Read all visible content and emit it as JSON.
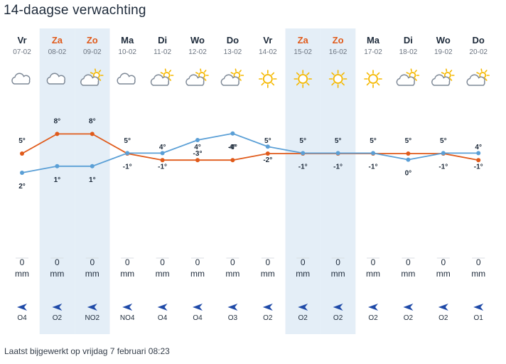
{
  "page": {
    "title": "14-daagse verwachting",
    "footer": "Laatst bijgewerkt op vrijdag 7 februari 08:23"
  },
  "colors": {
    "max_line": "#e05a1a",
    "min_line": "#5a9fd6",
    "weekend_band": "#e4eef7",
    "weekend_text": "#e05a1a",
    "sun": "#f5b800",
    "cloud_stroke": "#7d8896",
    "wind_arrow": "#1f4aa8"
  },
  "days": [
    {
      "day": "Vr",
      "date": "07-02",
      "icon": "cloud-icon",
      "max": "5°",
      "min": "2°",
      "precip": "0",
      "unit": "mm",
      "wind": "O4",
      "weekend": false
    },
    {
      "day": "Za",
      "date": "08-02",
      "icon": "cloud-icon",
      "max": "8°",
      "min": "1°",
      "precip": "0",
      "unit": "mm",
      "wind": "O2",
      "weekend": true
    },
    {
      "day": "Zo",
      "date": "09-02",
      "icon": "sun-cloud-icon",
      "max": "8°",
      "min": "1°",
      "precip": "0",
      "unit": "mm",
      "wind": "NO2",
      "weekend": true
    },
    {
      "day": "Ma",
      "date": "10-02",
      "icon": "cloud-icon",
      "max": "5°",
      "min": "-1°",
      "precip": "0",
      "unit": "mm",
      "wind": "NO4",
      "weekend": false
    },
    {
      "day": "Di",
      "date": "11-02",
      "icon": "sun-cloud-icon",
      "max": "4°",
      "min": "-1°",
      "precip": "0",
      "unit": "mm",
      "wind": "O4",
      "weekend": false
    },
    {
      "day": "Wo",
      "date": "12-02",
      "icon": "sun-cloud-icon",
      "max": "4°",
      "min": "-3°",
      "precip": "0",
      "unit": "mm",
      "wind": "O4",
      "weekend": false
    },
    {
      "day": "Do",
      "date": "13-02",
      "icon": "sun-cloud-icon",
      "max": "4°",
      "min": "-4°",
      "precip": "0",
      "unit": "mm",
      "wind": "O3",
      "weekend": false
    },
    {
      "day": "Vr",
      "date": "14-02",
      "icon": "sun-icon",
      "max": "5°",
      "min": "-2°",
      "precip": "0",
      "unit": "mm",
      "wind": "O2",
      "weekend": false
    },
    {
      "day": "Za",
      "date": "15-02",
      "icon": "sun-icon",
      "max": "5°",
      "min": "-1°",
      "precip": "0",
      "unit": "mm",
      "wind": "O2",
      "weekend": true
    },
    {
      "day": "Zo",
      "date": "16-02",
      "icon": "sun-icon",
      "max": "5°",
      "min": "-1°",
      "precip": "0",
      "unit": "mm",
      "wind": "O2",
      "weekend": true
    },
    {
      "day": "Ma",
      "date": "17-02",
      "icon": "sun-icon",
      "max": "5°",
      "min": "-1°",
      "precip": "0",
      "unit": "mm",
      "wind": "O2",
      "weekend": false
    },
    {
      "day": "Di",
      "date": "18-02",
      "icon": "sun-cloud-icon",
      "max": "5°",
      "min": "0°",
      "precip": "0",
      "unit": "mm",
      "wind": "O2",
      "weekend": false
    },
    {
      "day": "Wo",
      "date": "19-02",
      "icon": "sun-cloud-icon",
      "max": "5°",
      "min": "-1°",
      "precip": "0",
      "unit": "mm",
      "wind": "O2",
      "weekend": false
    },
    {
      "day": "Do",
      "date": "20-02",
      "icon": "sun-cloud-icon",
      "max": "4°",
      "min": "-1°",
      "precip": "0",
      "unit": "mm",
      "wind": "O1",
      "weekend": false
    }
  ],
  "chart_data": {
    "type": "line",
    "categories": [
      "07-02",
      "08-02",
      "09-02",
      "10-02",
      "11-02",
      "12-02",
      "13-02",
      "14-02",
      "15-02",
      "16-02",
      "17-02",
      "18-02",
      "19-02",
      "20-02"
    ],
    "series": [
      {
        "values": [
          5,
          8,
          8,
          5,
          4,
          4,
          4,
          5,
          5,
          5,
          5,
          5,
          5,
          4
        ],
        "color": "#e05a1a"
      },
      {
        "values": [
          2,
          1,
          1,
          -1,
          -1,
          -3,
          -4,
          -2,
          -1,
          -1,
          -1,
          0,
          -1,
          -1
        ],
        "color": "#5a9fd6"
      }
    ],
    "ylim": [
      -4,
      8
    ],
    "grid": false
  }
}
